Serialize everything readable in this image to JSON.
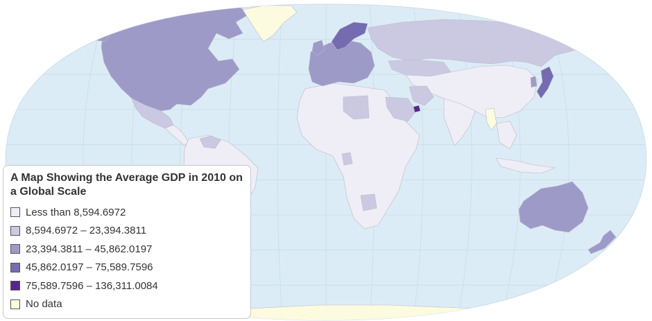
{
  "map": {
    "ocean_color": "#dcecf6",
    "graticule_color": "#c6dcea",
    "border_color": "#b9b9c8",
    "countries": [
      {
        "name": "canada-usa",
        "bin": 2
      },
      {
        "name": "greenland",
        "bin": 5
      },
      {
        "name": "mexico",
        "bin": 1
      },
      {
        "name": "central-america",
        "bin": 0
      },
      {
        "name": "south-america",
        "bin": 0
      },
      {
        "name": "venezuela",
        "bin": 1
      },
      {
        "name": "western-europe",
        "bin": 2
      },
      {
        "name": "norway",
        "bin": 3
      },
      {
        "name": "russia",
        "bin": 1
      },
      {
        "name": "china",
        "bin": 0
      },
      {
        "name": "africa",
        "bin": 0
      },
      {
        "name": "libya",
        "bin": 1
      },
      {
        "name": "gabon",
        "bin": 1
      },
      {
        "name": "botswana",
        "bin": 1
      },
      {
        "name": "saudi-arabia",
        "bin": 1
      },
      {
        "name": "uae",
        "bin": 4
      },
      {
        "name": "iran",
        "bin": 1
      },
      {
        "name": "kazakhstan",
        "bin": 1
      },
      {
        "name": "india",
        "bin": 0
      },
      {
        "name": "myanmar",
        "bin": 5
      },
      {
        "name": "japan",
        "bin": 3
      },
      {
        "name": "korea",
        "bin": 2
      },
      {
        "name": "australia",
        "bin": 2
      },
      {
        "name": "new-zealand",
        "bin": 2
      },
      {
        "name": "antarctica",
        "bin": 5
      }
    ]
  },
  "legend": {
    "title": "A Map Showing the Average GDP in 2010 on a Global Scale",
    "items": [
      {
        "label": "Less than 8,594.6972",
        "color": "#efedf5"
      },
      {
        "label": "8,594.6972 – 23,394.3811",
        "color": "#cbc9e2"
      },
      {
        "label": "23,394.3811 – 45,862.0197",
        "color": "#9e9ac8"
      },
      {
        "label": "45,862.0197 – 75,589.7596",
        "color": "#756bb1"
      },
      {
        "label": "75,589.7596 – 136,311.0084",
        "color": "#54278f"
      },
      {
        "label": "No data",
        "color": "#fdfbdf"
      }
    ]
  }
}
